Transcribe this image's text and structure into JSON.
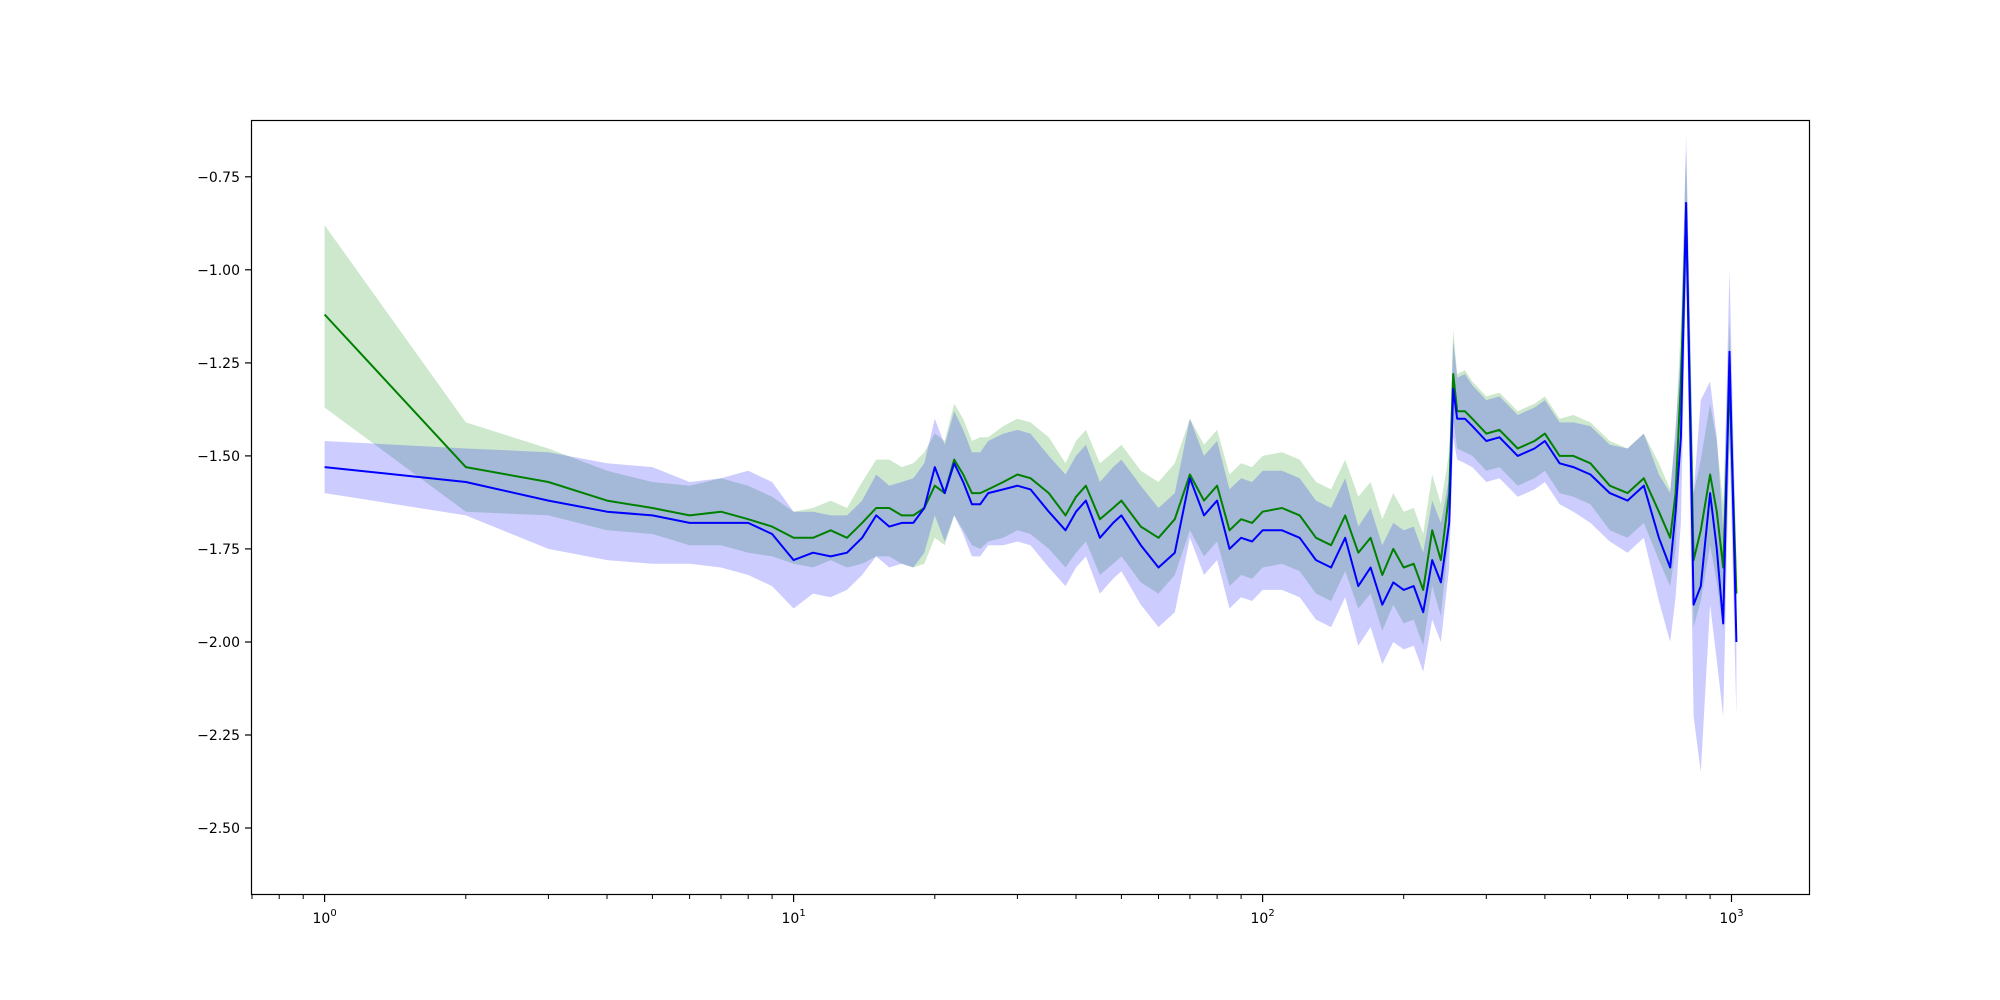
{
  "chart_data": {
    "type": "line",
    "title": "",
    "xlabel": "",
    "ylabel": "",
    "xscale": "log",
    "xlim": [
      0.7,
      1470
    ],
    "ylim": [
      -2.68,
      -0.6
    ],
    "grid": false,
    "legend": "none",
    "x_ticks": [
      {
        "value": 1,
        "base": "10",
        "exp": "0"
      },
      {
        "value": 10,
        "base": "10",
        "exp": "1"
      },
      {
        "value": 100,
        "base": "10",
        "exp": "2"
      },
      {
        "value": 1000,
        "base": "10",
        "exp": "3"
      }
    ],
    "y_ticks": [
      {
        "value": -0.75,
        "label": "−0.75"
      },
      {
        "value": -1.0,
        "label": "−1.00"
      },
      {
        "value": -1.25,
        "label": "−1.25"
      },
      {
        "value": -1.5,
        "label": "−1.50"
      },
      {
        "value": -1.75,
        "label": "−1.75"
      },
      {
        "value": -2.0,
        "label": "−2.00"
      },
      {
        "value": -2.25,
        "label": "−2.25"
      },
      {
        "value": -2.5,
        "label": "−2.50"
      }
    ],
    "series": [
      {
        "color": "#008000",
        "band_color": "#2ca02c",
        "band_opacity": 0.24,
        "x": [
          1,
          2,
          3,
          4,
          5,
          6,
          7,
          8,
          9,
          10,
          11,
          12,
          13,
          14,
          15,
          16,
          17,
          18,
          19,
          20,
          21,
          22,
          23,
          24,
          25,
          26,
          28,
          30,
          32,
          35,
          38,
          40,
          42,
          45,
          48,
          50,
          55,
          60,
          65,
          70,
          75,
          80,
          85,
          90,
          95,
          100,
          110,
          120,
          130,
          140,
          150,
          160,
          170,
          180,
          190,
          200,
          210,
          220,
          230,
          240,
          250,
          255,
          260,
          270,
          280,
          300,
          320,
          350,
          380,
          400,
          430,
          460,
          500,
          550,
          600,
          650,
          700,
          740,
          760,
          780,
          800,
          830,
          860,
          900,
          930,
          960,
          990,
          1024
        ],
        "y": [
          -1.12,
          -1.53,
          -1.57,
          -1.62,
          -1.64,
          -1.66,
          -1.65,
          -1.67,
          -1.69,
          -1.72,
          -1.72,
          -1.7,
          -1.72,
          -1.68,
          -1.64,
          -1.64,
          -1.66,
          -1.66,
          -1.64,
          -1.58,
          -1.6,
          -1.51,
          -1.55,
          -1.6,
          -1.6,
          -1.59,
          -1.57,
          -1.55,
          -1.56,
          -1.6,
          -1.66,
          -1.61,
          -1.58,
          -1.67,
          -1.64,
          -1.62,
          -1.69,
          -1.72,
          -1.67,
          -1.55,
          -1.62,
          -1.58,
          -1.7,
          -1.67,
          -1.68,
          -1.65,
          -1.64,
          -1.66,
          -1.72,
          -1.74,
          -1.66,
          -1.76,
          -1.72,
          -1.82,
          -1.75,
          -1.8,
          -1.79,
          -1.86,
          -1.7,
          -1.78,
          -1.6,
          -1.28,
          -1.38,
          -1.38,
          -1.4,
          -1.44,
          -1.43,
          -1.48,
          -1.46,
          -1.44,
          -1.5,
          -1.5,
          -1.52,
          -1.58,
          -1.6,
          -1.56,
          -1.65,
          -1.72,
          -1.6,
          -1.3,
          -0.85,
          -1.78,
          -1.7,
          -1.55,
          -1.65,
          -1.8,
          -1.3,
          -1.87
        ],
        "lower": [
          -1.37,
          -1.65,
          -1.66,
          -1.7,
          -1.71,
          -1.74,
          -1.74,
          -1.76,
          -1.77,
          -1.79,
          -1.8,
          -1.78,
          -1.8,
          -1.79,
          -1.77,
          -1.77,
          -1.79,
          -1.8,
          -1.79,
          -1.72,
          -1.74,
          -1.66,
          -1.7,
          -1.74,
          -1.75,
          -1.73,
          -1.72,
          -1.7,
          -1.71,
          -1.75,
          -1.8,
          -1.76,
          -1.73,
          -1.82,
          -1.79,
          -1.77,
          -1.84,
          -1.87,
          -1.82,
          -1.7,
          -1.77,
          -1.73,
          -1.85,
          -1.82,
          -1.83,
          -1.8,
          -1.79,
          -1.81,
          -1.87,
          -1.89,
          -1.81,
          -1.91,
          -1.87,
          -1.97,
          -1.9,
          -1.95,
          -1.94,
          -2.01,
          -1.85,
          -1.93,
          -1.71,
          -1.4,
          -1.48,
          -1.49,
          -1.5,
          -1.54,
          -1.53,
          -1.58,
          -1.56,
          -1.54,
          -1.6,
          -1.61,
          -1.63,
          -1.7,
          -1.72,
          -1.68,
          -1.78,
          -1.85,
          -1.75,
          -1.46,
          -1.02,
          -1.96,
          -1.89,
          -1.74,
          -1.84,
          -1.97,
          -1.46,
          -1.97
        ],
        "upper": [
          -0.88,
          -1.41,
          -1.48,
          -1.54,
          -1.57,
          -1.58,
          -1.56,
          -1.58,
          -1.61,
          -1.65,
          -1.64,
          -1.62,
          -1.64,
          -1.57,
          -1.51,
          -1.51,
          -1.53,
          -1.52,
          -1.49,
          -1.44,
          -1.46,
          -1.36,
          -1.4,
          -1.46,
          -1.45,
          -1.45,
          -1.42,
          -1.4,
          -1.41,
          -1.45,
          -1.52,
          -1.46,
          -1.43,
          -1.52,
          -1.49,
          -1.47,
          -1.54,
          -1.57,
          -1.52,
          -1.4,
          -1.47,
          -1.43,
          -1.55,
          -1.52,
          -1.53,
          -1.5,
          -1.49,
          -1.51,
          -1.57,
          -1.59,
          -1.51,
          -1.61,
          -1.57,
          -1.67,
          -1.6,
          -1.65,
          -1.64,
          -1.71,
          -1.55,
          -1.63,
          -1.49,
          -1.16,
          -1.28,
          -1.27,
          -1.3,
          -1.34,
          -1.33,
          -1.38,
          -1.36,
          -1.34,
          -1.4,
          -1.39,
          -1.41,
          -1.46,
          -1.48,
          -1.44,
          -1.52,
          -1.59,
          -1.45,
          -1.14,
          -0.68,
          -1.6,
          -1.51,
          -1.36,
          -1.46,
          -1.63,
          -1.14,
          -1.77
        ]
      },
      {
        "color": "#0000ff",
        "band_color": "#0000ff",
        "band_opacity": 0.2,
        "x": [
          1,
          2,
          3,
          4,
          5,
          6,
          7,
          8,
          9,
          10,
          11,
          12,
          13,
          14,
          15,
          16,
          17,
          18,
          19,
          20,
          21,
          22,
          23,
          24,
          25,
          26,
          28,
          30,
          32,
          35,
          38,
          40,
          42,
          45,
          48,
          50,
          55,
          60,
          65,
          70,
          75,
          80,
          85,
          90,
          95,
          100,
          110,
          120,
          130,
          140,
          150,
          160,
          170,
          180,
          190,
          200,
          210,
          220,
          230,
          240,
          250,
          255,
          260,
          270,
          280,
          300,
          320,
          350,
          380,
          400,
          430,
          460,
          500,
          550,
          600,
          650,
          700,
          740,
          760,
          780,
          800,
          830,
          860,
          900,
          930,
          960,
          990,
          1024
        ],
        "y": [
          -1.53,
          -1.57,
          -1.62,
          -1.65,
          -1.66,
          -1.68,
          -1.68,
          -1.68,
          -1.71,
          -1.78,
          -1.76,
          -1.77,
          -1.76,
          -1.72,
          -1.66,
          -1.69,
          -1.68,
          -1.68,
          -1.64,
          -1.53,
          -1.6,
          -1.52,
          -1.57,
          -1.63,
          -1.63,
          -1.6,
          -1.59,
          -1.58,
          -1.59,
          -1.65,
          -1.7,
          -1.65,
          -1.62,
          -1.72,
          -1.68,
          -1.66,
          -1.74,
          -1.8,
          -1.76,
          -1.56,
          -1.66,
          -1.62,
          -1.75,
          -1.72,
          -1.73,
          -1.7,
          -1.7,
          -1.72,
          -1.78,
          -1.8,
          -1.72,
          -1.85,
          -1.8,
          -1.9,
          -1.84,
          -1.86,
          -1.85,
          -1.92,
          -1.78,
          -1.84,
          -1.68,
          -1.32,
          -1.4,
          -1.4,
          -1.42,
          -1.46,
          -1.45,
          -1.5,
          -1.48,
          -1.46,
          -1.52,
          -1.53,
          -1.55,
          -1.6,
          -1.62,
          -1.58,
          -1.72,
          -1.8,
          -1.65,
          -1.45,
          -0.82,
          -1.9,
          -1.85,
          -1.6,
          -1.75,
          -1.95,
          -1.22,
          -2.0
        ],
        "lower": [
          -1.6,
          -1.66,
          -1.75,
          -1.78,
          -1.79,
          -1.79,
          -1.8,
          -1.82,
          -1.85,
          -1.91,
          -1.87,
          -1.88,
          -1.86,
          -1.82,
          -1.77,
          -1.8,
          -1.79,
          -1.8,
          -1.76,
          -1.66,
          -1.73,
          -1.66,
          -1.71,
          -1.77,
          -1.77,
          -1.74,
          -1.74,
          -1.73,
          -1.74,
          -1.8,
          -1.85,
          -1.8,
          -1.77,
          -1.87,
          -1.83,
          -1.81,
          -1.9,
          -1.96,
          -1.92,
          -1.72,
          -1.82,
          -1.78,
          -1.91,
          -1.88,
          -1.89,
          -1.86,
          -1.86,
          -1.88,
          -1.94,
          -1.96,
          -1.88,
          -2.01,
          -1.96,
          -2.06,
          -2.0,
          -2.02,
          -2.01,
          -2.08,
          -1.94,
          -2.0,
          -1.8,
          -1.45,
          -1.51,
          -1.52,
          -1.53,
          -1.57,
          -1.56,
          -1.61,
          -1.59,
          -1.57,
          -1.63,
          -1.65,
          -1.68,
          -1.73,
          -1.76,
          -1.72,
          -1.89,
          -2.0,
          -1.88,
          -1.68,
          -1.0,
          -2.2,
          -2.35,
          -1.9,
          -2.05,
          -2.2,
          -1.45,
          -2.2
        ],
        "upper": [
          -1.46,
          -1.48,
          -1.49,
          -1.52,
          -1.53,
          -1.57,
          -1.56,
          -1.54,
          -1.57,
          -1.65,
          -1.65,
          -1.66,
          -1.66,
          -1.62,
          -1.55,
          -1.58,
          -1.57,
          -1.56,
          -1.52,
          -1.4,
          -1.47,
          -1.38,
          -1.43,
          -1.49,
          -1.49,
          -1.46,
          -1.44,
          -1.43,
          -1.44,
          -1.5,
          -1.55,
          -1.5,
          -1.47,
          -1.57,
          -1.53,
          -1.51,
          -1.58,
          -1.64,
          -1.6,
          -1.4,
          -1.5,
          -1.46,
          -1.59,
          -1.56,
          -1.57,
          -1.54,
          -1.54,
          -1.56,
          -1.62,
          -1.64,
          -1.56,
          -1.69,
          -1.64,
          -1.74,
          -1.68,
          -1.7,
          -1.69,
          -1.76,
          -1.62,
          -1.68,
          -1.56,
          -1.19,
          -1.29,
          -1.28,
          -1.31,
          -1.35,
          -1.34,
          -1.39,
          -1.37,
          -1.35,
          -1.41,
          -1.41,
          -1.42,
          -1.47,
          -1.48,
          -1.44,
          -1.55,
          -1.6,
          -1.42,
          -1.22,
          -0.64,
          -1.6,
          -1.35,
          -1.3,
          -1.45,
          -1.7,
          -1.0,
          -1.8
        ]
      }
    ]
  }
}
